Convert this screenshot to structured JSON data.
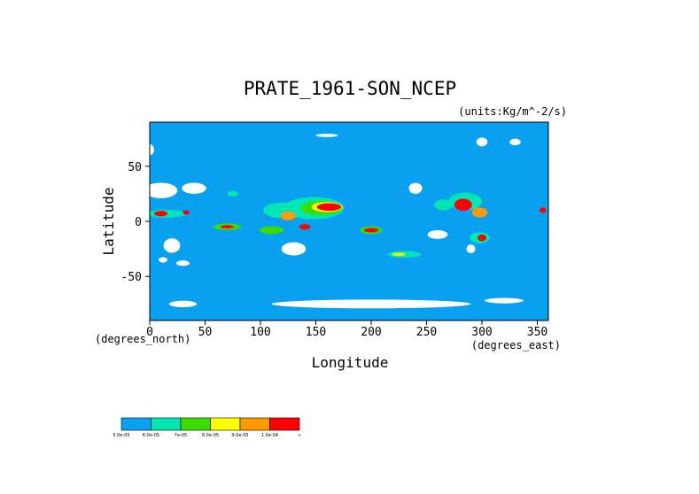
{
  "chart_data": {
    "type": "heatmap",
    "title": "PRATE_1961-SON_NCEP",
    "units": "(units:Kg/m^-2/s)",
    "xlabel": "Longitude",
    "ylabel": "Latitude",
    "x_note": "(degrees_north)",
    "x_unit_note": "(degrees_east)",
    "xlim": [
      0,
      360
    ],
    "ylim": [
      -90,
      90
    ],
    "x_ticks": [
      0,
      50,
      100,
      150,
      200,
      250,
      300,
      350
    ],
    "y_ticks": [
      -50,
      0,
      50
    ],
    "colorbar": {
      "colors": [
        "#0aa0f0",
        "#00e6b4",
        "#3cdc00",
        "#ffff00",
        "#ff9900",
        "#ff0000"
      ],
      "labels": [
        "5.0e-05",
        "6.0e-05",
        "7e-05",
        "8.0e-05",
        "9.0e-05",
        "1.0e-04",
        "∞"
      ]
    },
    "regions": [
      {
        "lon": 148,
        "lat": 12,
        "w": 55,
        "h": 20,
        "level": 1
      },
      {
        "lon": 155,
        "lat": 12,
        "w": 38,
        "h": 13,
        "level": 2
      },
      {
        "lon": 160,
        "lat": 13,
        "w": 28,
        "h": 9,
        "level": 3
      },
      {
        "lon": 162,
        "lat": 13,
        "w": 22,
        "h": 7,
        "level": 5
      },
      {
        "lon": 200,
        "lat": -8,
        "w": 20,
        "h": 7,
        "level": 2
      },
      {
        "lon": 200,
        "lat": -8,
        "w": 13,
        "h": 4,
        "level": 5
      },
      {
        "lon": 120,
        "lat": 10,
        "w": 35,
        "h": 14,
        "level": 1
      },
      {
        "lon": 125,
        "lat": 5,
        "w": 14,
        "h": 8,
        "level": 4
      },
      {
        "lon": 110,
        "lat": -8,
        "w": 22,
        "h": 7,
        "level": 2
      },
      {
        "lon": 140,
        "lat": -5,
        "w": 10,
        "h": 5,
        "level": 5
      },
      {
        "lon": 265,
        "lat": 15,
        "w": 16,
        "h": 10,
        "level": 1
      },
      {
        "lon": 285,
        "lat": 18,
        "w": 30,
        "h": 16,
        "level": 1
      },
      {
        "lon": 283,
        "lat": 15,
        "w": 16,
        "h": 11,
        "level": 5
      },
      {
        "lon": 298,
        "lat": 8,
        "w": 14,
        "h": 9,
        "level": 4
      },
      {
        "lon": 298,
        "lat": -15,
        "w": 18,
        "h": 10,
        "level": 1
      },
      {
        "lon": 300,
        "lat": -15,
        "w": 8,
        "h": 6,
        "level": 5
      },
      {
        "lon": 15,
        "lat": 7,
        "w": 35,
        "h": 7,
        "level": 1
      },
      {
        "lon": 10,
        "lat": 7,
        "w": 12,
        "h": 5,
        "level": 5
      },
      {
        "lon": 33,
        "lat": 8,
        "w": 6,
        "h": 4,
        "level": 5
      },
      {
        "lon": 70,
        "lat": -5,
        "w": 25,
        "h": 6,
        "level": 2
      },
      {
        "lon": 70,
        "lat": -5,
        "w": 12,
        "h": 3,
        "level": 5
      },
      {
        "lon": 230,
        "lat": -30,
        "w": 30,
        "h": 6,
        "level": 1
      },
      {
        "lon": 225,
        "lat": -30,
        "w": 12,
        "h": 3,
        "level": 3
      },
      {
        "lon": 75,
        "lat": 25,
        "w": 10,
        "h": 5,
        "level": 1
      },
      {
        "lon": 355,
        "lat": 10,
        "w": 6,
        "h": 5,
        "level": 5
      }
    ],
    "dry_patches": [
      {
        "lon": 10,
        "lat": 28,
        "w": 30,
        "h": 14
      },
      {
        "lon": 40,
        "lat": 30,
        "w": 22,
        "h": 10
      },
      {
        "lon": 20,
        "lat": -22,
        "w": 15,
        "h": 13
      },
      {
        "lon": 12,
        "lat": -35,
        "w": 8,
        "h": 5
      },
      {
        "lon": 30,
        "lat": -38,
        "w": 12,
        "h": 5
      },
      {
        "lon": 130,
        "lat": -25,
        "w": 22,
        "h": 12
      },
      {
        "lon": 260,
        "lat": -12,
        "w": 18,
        "h": 8
      },
      {
        "lon": 290,
        "lat": -25,
        "w": 8,
        "h": 8
      },
      {
        "lon": 240,
        "lat": 30,
        "w": 12,
        "h": 10
      },
      {
        "lon": 200,
        "lat": -75,
        "w": 180,
        "h": 8
      },
      {
        "lon": 30,
        "lat": -75,
        "w": 25,
        "h": 6
      },
      {
        "lon": 320,
        "lat": -72,
        "w": 35,
        "h": 5
      },
      {
        "lon": 160,
        "lat": 78,
        "w": 20,
        "h": 3
      },
      {
        "lon": 0,
        "lat": 65,
        "w": 8,
        "h": 10
      },
      {
        "lon": 300,
        "lat": 72,
        "w": 10,
        "h": 8
      },
      {
        "lon": 330,
        "lat": 72,
        "w": 10,
        "h": 6
      }
    ]
  }
}
